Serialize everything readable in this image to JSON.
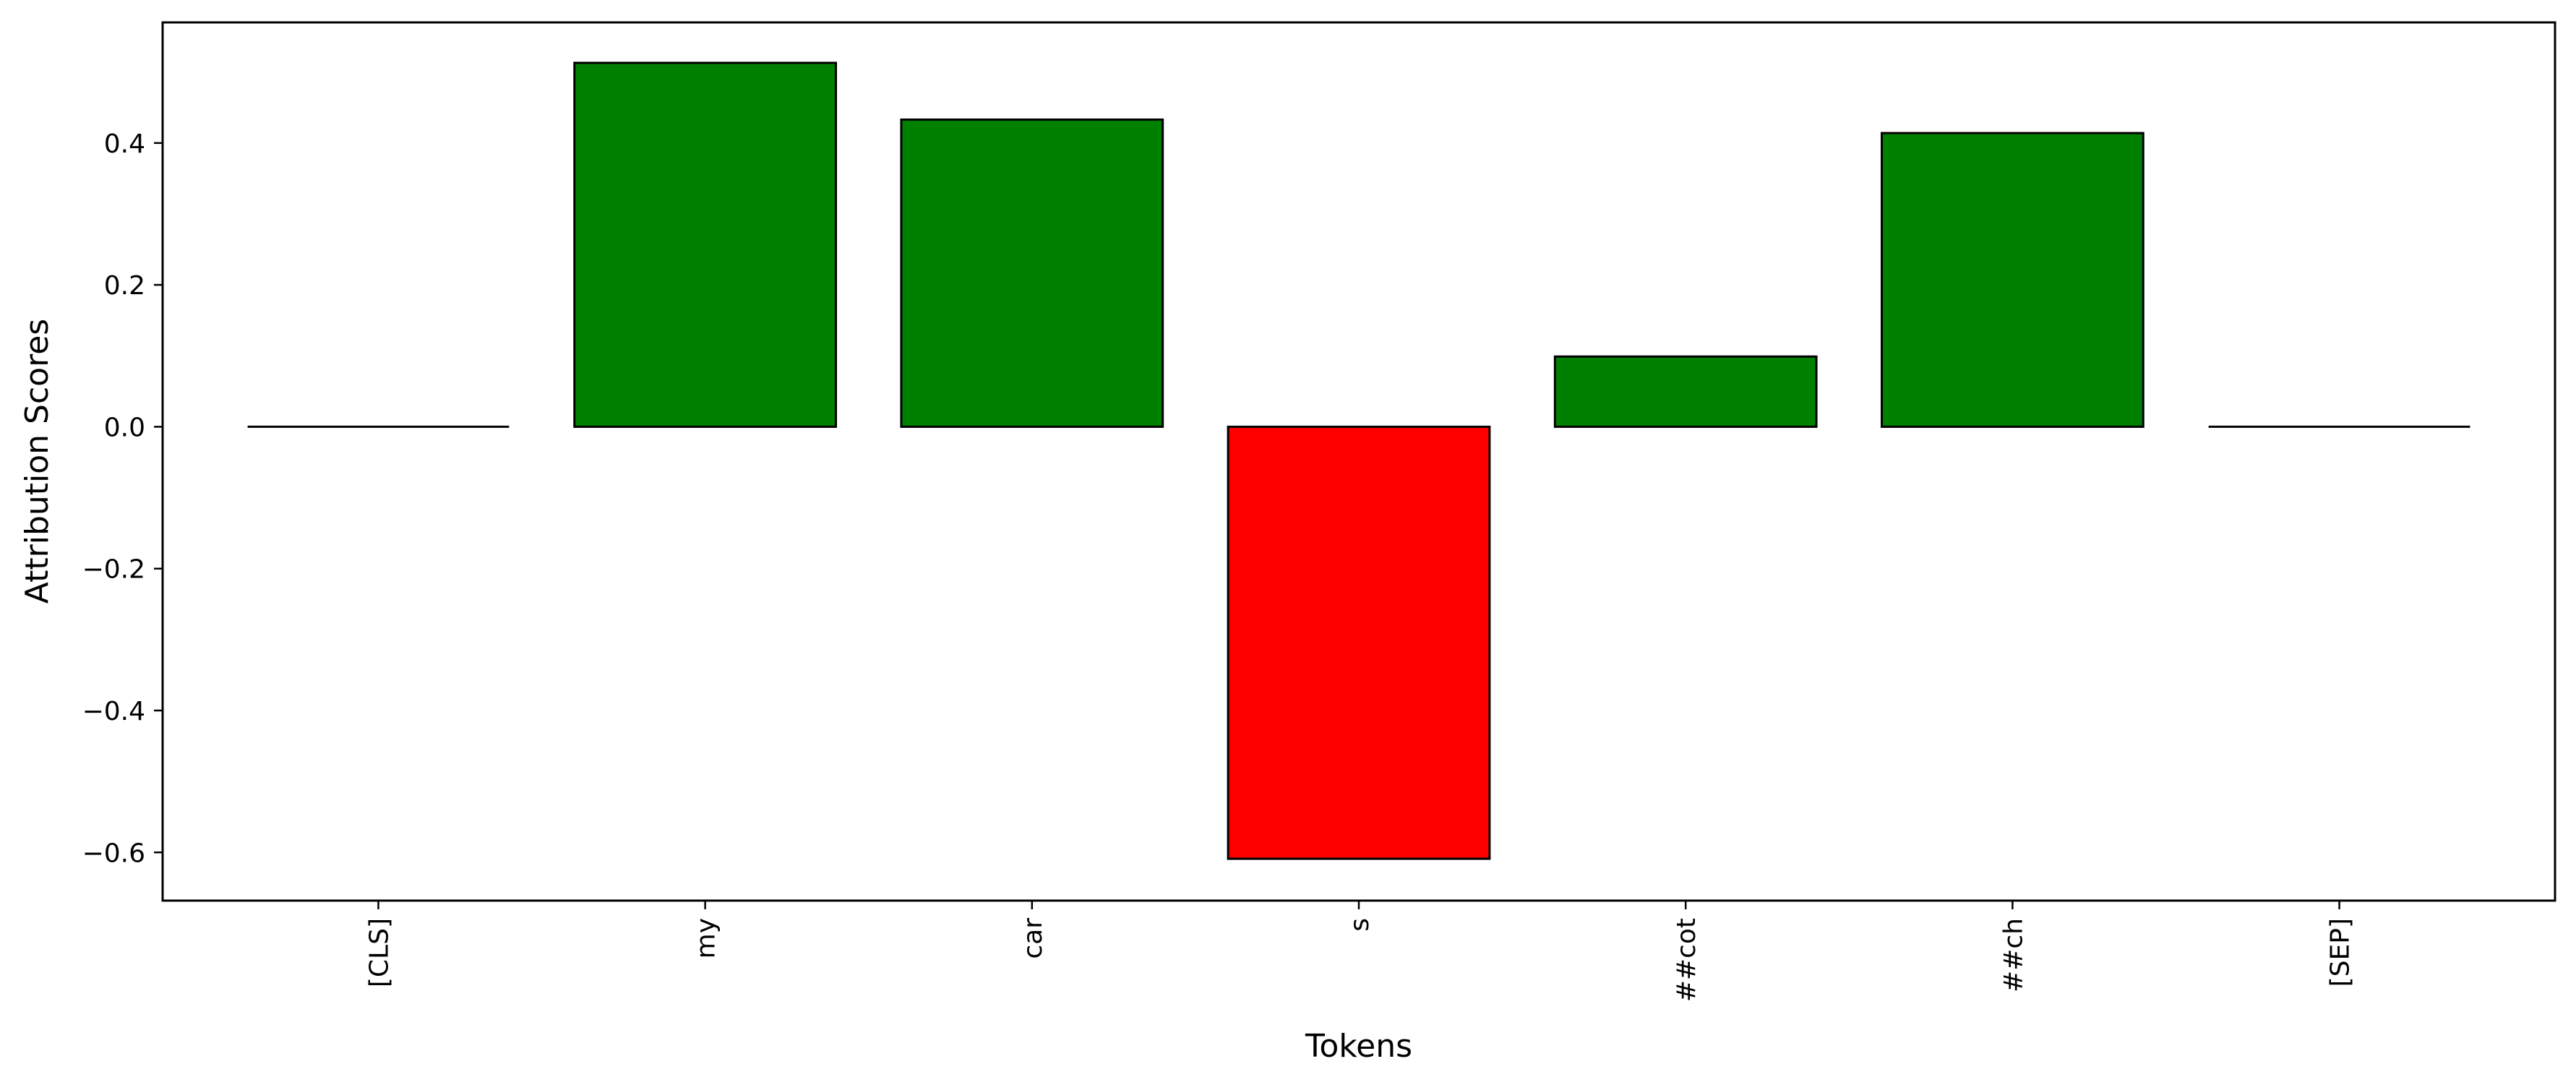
{
  "chart_data": {
    "type": "bar",
    "categories": [
      "[CLS]",
      "my",
      "car",
      "s",
      "##cot",
      "##ch",
      "[SEP]"
    ],
    "values": [
      0.0,
      0.513,
      0.433,
      -0.609,
      0.099,
      0.414,
      0.0
    ],
    "title": "",
    "xlabel": "Tokens",
    "ylabel": "Attribution Scores",
    "ylim": [
      -0.668,
      0.57
    ],
    "yticks": [
      -0.6,
      -0.4,
      -0.2,
      0.0,
      0.2,
      0.4
    ],
    "ytick_labels": [
      "−0.6",
      "−0.4",
      "−0.2",
      "0.0",
      "0.2",
      "0.4"
    ],
    "colors": {
      "positive": "#008000",
      "negative": "#ff0000",
      "edge": "#000000"
    },
    "x_tick_rotation": "vertical",
    "grid": false,
    "legend": "none"
  }
}
